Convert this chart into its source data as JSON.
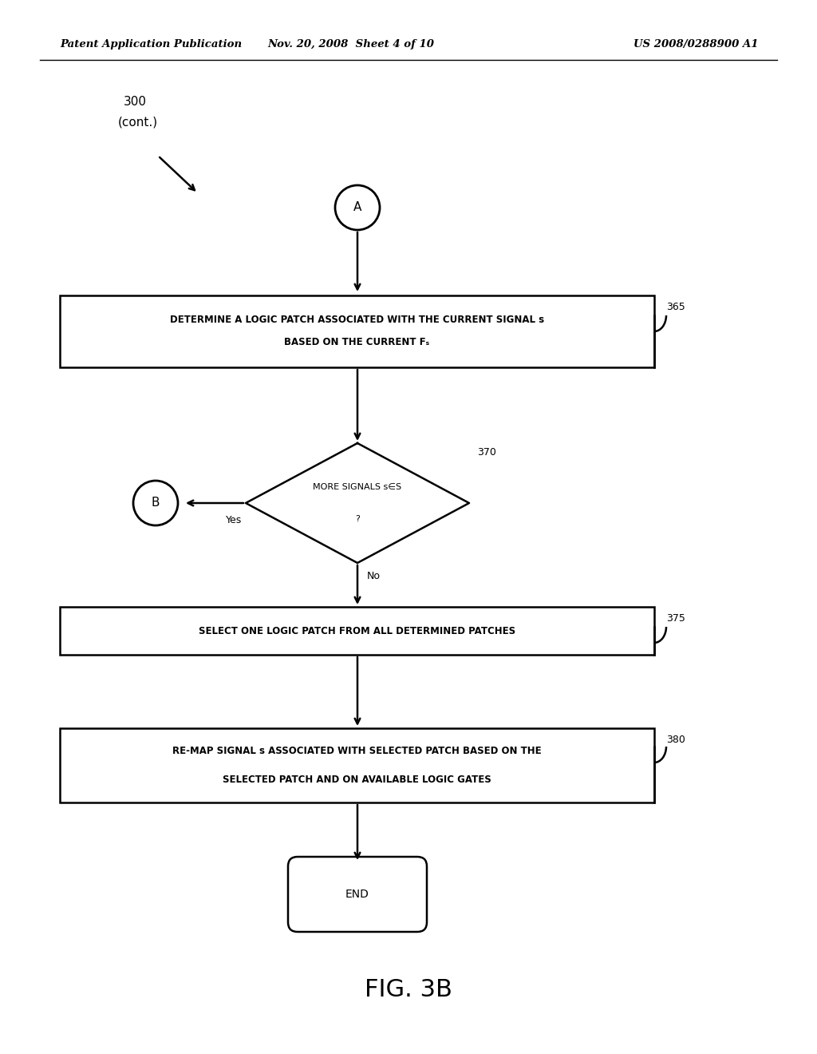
{
  "header_left": "Patent Application Publication",
  "header_center": "Nov. 20, 2008  Sheet 4 of 10",
  "header_right": "US 2008/0288900 A1",
  "label_300_line1": "300",
  "label_300_line2": "(cont.)",
  "connector_A": "A",
  "connector_B": "B",
  "box365_line1": "DETERMINE A LOGIC PATCH ASSOCIATED WITH THE CURRENT SIGNAL s",
  "box365_line2": "BASED ON THE CURRENT Fₛ",
  "box365_num": "365",
  "diamond370_line1": "MORE SIGNALS s∈S",
  "diamond370_line2": "?",
  "diamond370_num": "370",
  "yes_label": "Yes",
  "no_label": "No",
  "box375_label": "SELECT ONE LOGIC PATCH FROM ALL DETERMINED PATCHES",
  "box375_num": "375",
  "box380_line1": "RE-MAP SIGNAL s ASSOCIATED WITH SELECTED PATCH BASED ON THE",
  "box380_line2": "SELECTED PATCH AND ON AVAILABLE LOGIC GATES",
  "box380_num": "380",
  "end_label": "END",
  "fig_label": "FIG. 3B",
  "bg_color": "#ffffff",
  "line_color": "#000000",
  "text_color": "#000000"
}
